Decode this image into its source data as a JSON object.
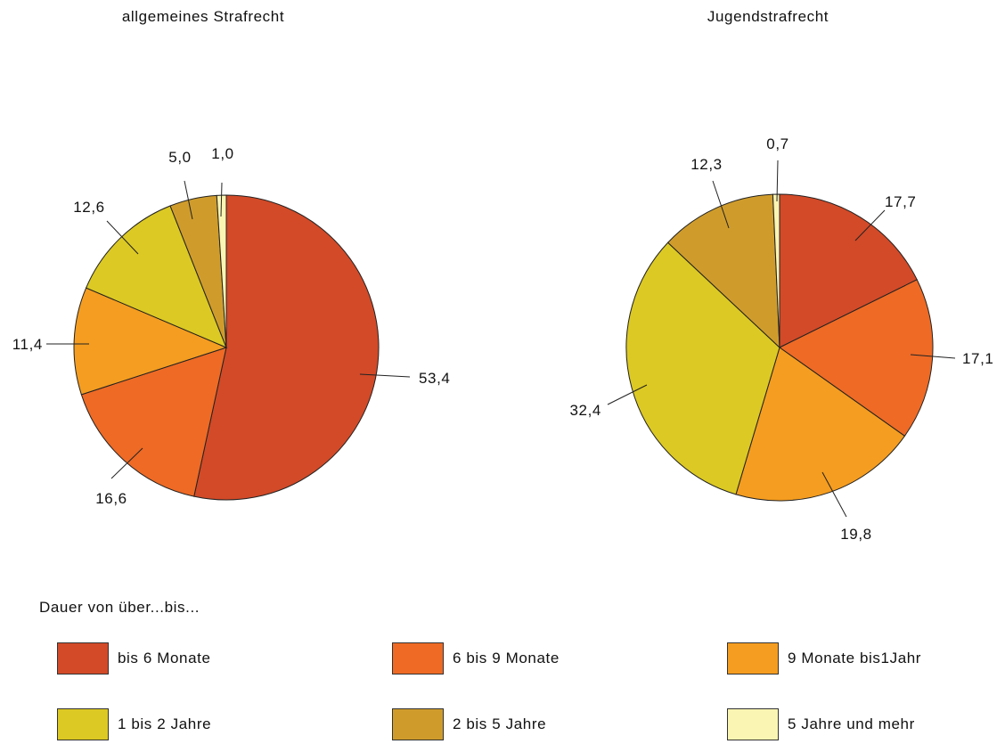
{
  "colors": {
    "bis_6_monate": "#d24a28",
    "6_bis_9_monate": "#ee6a25",
    "9_monate_bis_1_jahr": "#f59d20",
    "1_bis_2_jahre": "#dcc923",
    "2_bis_5_jahre": "#cf9c2c",
    "5_jahre_und_mehr": "#fbf5b3",
    "outline": "#222222"
  },
  "legend": {
    "title": "Dauer von über...bis...",
    "items": [
      {
        "label": "bis 6 Monate",
        "color": "#d24a28"
      },
      {
        "label": "6 bis 9 Monate",
        "color": "#ee6a25"
      },
      {
        "label": "9 Monate bis1Jahr",
        "color": "#f59d20"
      },
      {
        "label": "1 bis 2 Jahre",
        "color": "#dcc923"
      },
      {
        "label": "2 bis 5 Jahre",
        "color": "#cf9c2c"
      },
      {
        "label": "5 Jahre und mehr",
        "color": "#fbf5b3"
      }
    ]
  },
  "chart_data": [
    {
      "type": "pie",
      "title": "allgemeines Strafrecht",
      "categories": [
        "bis 6 Monate",
        "6 bis 9 Monate",
        "9 Monate bis1Jahr",
        "1 bis 2 Jahre",
        "2 bis 5 Jahre",
        "5 Jahre und mehr"
      ],
      "values": [
        53.4,
        16.6,
        11.4,
        12.6,
        5.0,
        1.0
      ],
      "data_labels": [
        "53,4",
        "16,6",
        "11,4",
        "12,6",
        "5,0",
        "1,0"
      ]
    },
    {
      "type": "pie",
      "title": "Jugendstrafrecht",
      "categories": [
        "bis 6 Monate",
        "6 bis 9 Monate",
        "9 Monate bis1Jahr",
        "1 bis 2 Jahre",
        "2 bis 5 Jahre",
        "5 Jahre und mehr"
      ],
      "values": [
        17.7,
        17.1,
        19.8,
        32.4,
        12.3,
        0.7
      ],
      "data_labels": [
        "17,7",
        "17,1",
        "19,8",
        "32,4",
        "12,3",
        "0,7"
      ]
    }
  ]
}
